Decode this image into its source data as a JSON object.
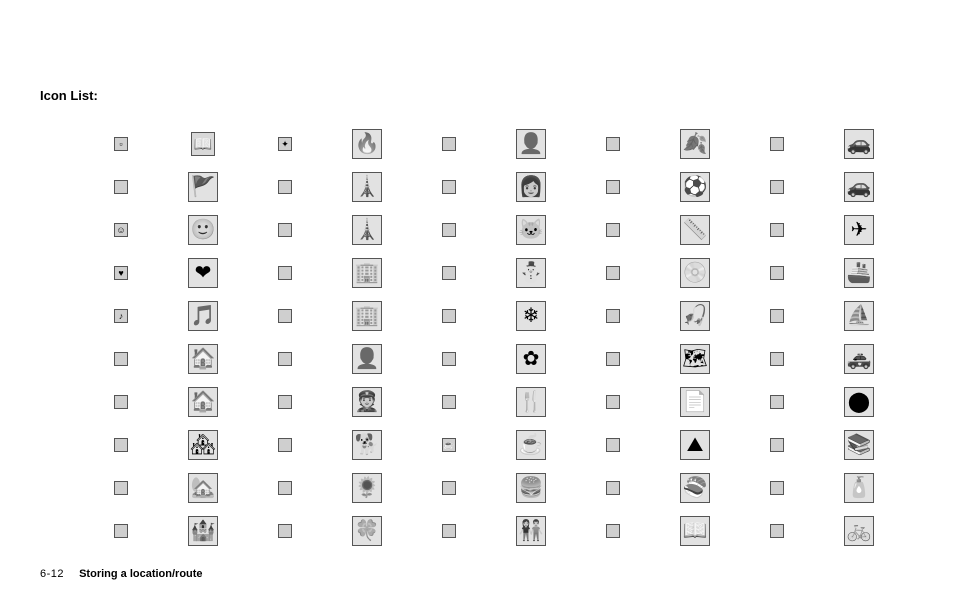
{
  "heading": "Icon List:",
  "footer": {
    "page_number": "6-12",
    "title": "Storing a location/route"
  },
  "grid": {
    "columns": 10,
    "size_pattern": [
      "s",
      "l",
      "s",
      "l",
      "s",
      "l",
      "s",
      "l",
      "s",
      "l"
    ],
    "rows": [
      {
        "glyphs": [
          "▫",
          "📖",
          "✦",
          "🔥",
          "·",
          "👤",
          "·",
          "🍂",
          "·",
          "🚗"
        ],
        "size_override": {
          "1": "m"
        }
      },
      {
        "glyphs": [
          "·",
          "🚩",
          "·",
          "🗼",
          "·",
          "👩",
          "·",
          "⚽",
          "·",
          "🚗"
        ]
      },
      {
        "glyphs": [
          "☺",
          "🙂",
          "·",
          "🗼",
          "·",
          "🐱",
          "·",
          "📏",
          "·",
          "✈"
        ]
      },
      {
        "glyphs": [
          "♥",
          "❤",
          "·",
          "🏢",
          "·",
          "⛄",
          "·",
          "💿",
          "·",
          "🚢"
        ]
      },
      {
        "glyphs": [
          "♪",
          "🎵",
          "·",
          "🏢",
          "·",
          "❄",
          "·",
          "🎣",
          "·",
          "⛵"
        ]
      },
      {
        "glyphs": [
          "·",
          "🏠",
          "·",
          "👤",
          "·",
          "✿",
          "·",
          "🗺",
          "·",
          "🚓"
        ]
      },
      {
        "glyphs": [
          "·",
          "🏠",
          "·",
          "👮",
          "·",
          "🍴",
          "·",
          "📄",
          "·",
          "⬤"
        ]
      },
      {
        "glyphs": [
          "·",
          "🏘",
          "·",
          "🐕",
          "☕",
          "☕",
          "·",
          "⛰",
          "·",
          "📚"
        ]
      },
      {
        "glyphs": [
          "·",
          "🏡",
          "·",
          "🌻",
          "·",
          "🍔",
          "·",
          "🍣",
          "·",
          "🧴"
        ]
      },
      {
        "glyphs": [
          "·",
          "🏰",
          "·",
          "🍀",
          "·",
          "👫",
          "·",
          "📖",
          "·",
          "🚲"
        ]
      }
    ]
  }
}
